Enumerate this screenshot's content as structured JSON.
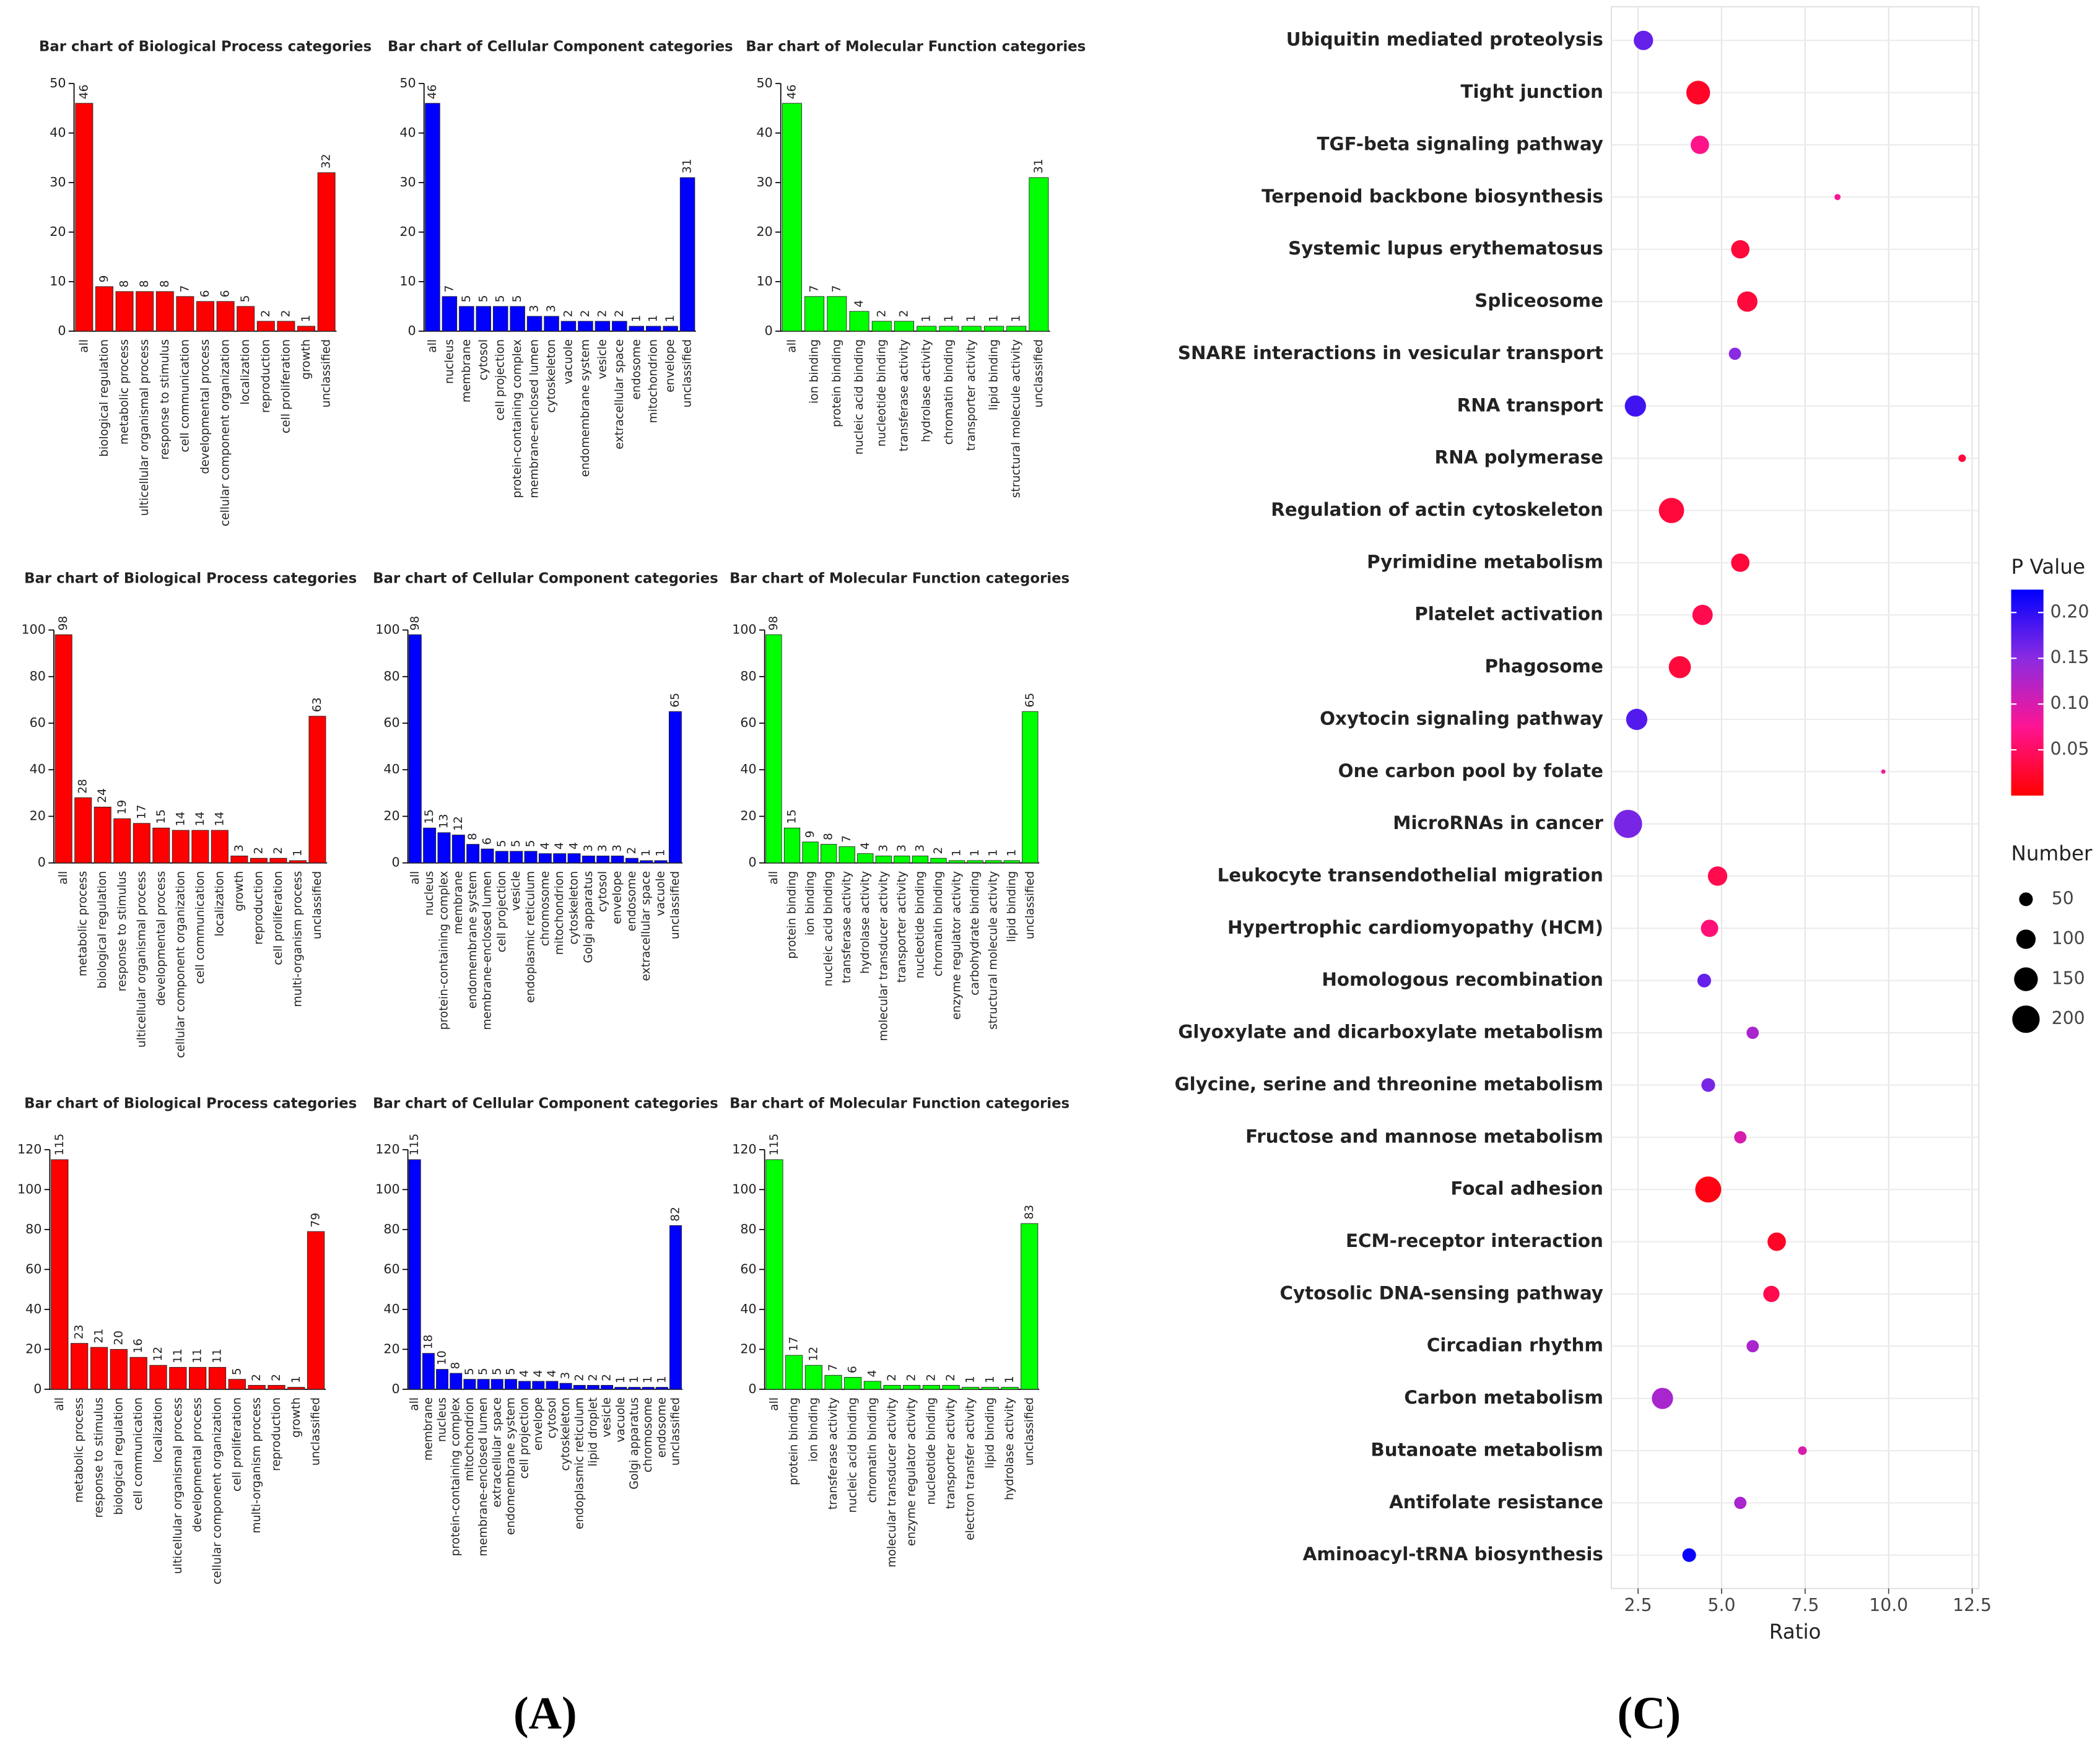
{
  "panel_labels": [
    "(A)",
    "(C)"
  ],
  "chart_data": [
    {
      "type": "bar",
      "title": "Bar chart of Biological Process categories",
      "color": "#ff0000",
      "categories": [
        "all",
        "biological regulation",
        "metabolic process",
        "ulticellular organismal process",
        "response to stimulus",
        "cell communication",
        "developmental process",
        "cellular component organization",
        "localization",
        "reproduction",
        "cell proliferation",
        "growth",
        "unclassified"
      ],
      "values": [
        46,
        9,
        8,
        8,
        8,
        7,
        6,
        6,
        5,
        2,
        2,
        1,
        32
      ],
      "ylim": [
        0,
        50
      ],
      "yticks": [
        0,
        10,
        20,
        30,
        40,
        50
      ]
    },
    {
      "type": "bar",
      "title": "Bar chart of Cellular Component categories",
      "color": "#0000ff",
      "categories": [
        "all",
        "nucleus",
        "membrane",
        "cytosol",
        "cell projection",
        "protein-containing complex",
        "membrane-enclosed lumen",
        "cytoskeleton",
        "vacuole",
        "endomembrane system",
        "vesicle",
        "extracellular space",
        "endosome",
        "mitochondrion",
        "envelope",
        "unclassified"
      ],
      "values": [
        46,
        7,
        5,
        5,
        5,
        5,
        3,
        3,
        2,
        2,
        2,
        2,
        1,
        1,
        1,
        31
      ],
      "ylim": [
        0,
        50
      ],
      "yticks": [
        0,
        10,
        20,
        30,
        40,
        50
      ]
    },
    {
      "type": "bar",
      "title": "Bar chart of Molecular Function categories",
      "color": "#00ff00",
      "categories": [
        "all",
        "ion binding",
        "protein binding",
        "nucleic acid binding",
        "nucleotide binding",
        "transferase activity",
        "hydrolase activity",
        "chromatin binding",
        "transporter activity",
        "lipid binding",
        "structural molecule activity",
        "unclassified"
      ],
      "values": [
        46,
        7,
        7,
        4,
        2,
        2,
        1,
        1,
        1,
        1,
        1,
        31
      ],
      "ylim": [
        0,
        50
      ],
      "yticks": [
        0,
        10,
        20,
        30,
        40,
        50
      ]
    },
    {
      "type": "bar",
      "title": "Bar chart of Biological Process categories",
      "color": "#ff0000",
      "categories": [
        "all",
        "metabolic process",
        "biological regulation",
        "response to stimulus",
        "ulticellular organismal process",
        "developmental process",
        "cellular component organization",
        "cell communication",
        "localization",
        "growth",
        "reproduction",
        "cell proliferation",
        "multi-organism process",
        "unclassified"
      ],
      "values": [
        98,
        28,
        24,
        19,
        17,
        15,
        14,
        14,
        14,
        3,
        2,
        2,
        1,
        63
      ],
      "ylim": [
        0,
        100
      ],
      "yticks": [
        0,
        20,
        40,
        60,
        80,
        100
      ]
    },
    {
      "type": "bar",
      "title": "Bar chart of Cellular Component categories",
      "color": "#0000ff",
      "categories": [
        "all",
        "nucleus",
        "protein-containing complex",
        "membrane",
        "endomembrane system",
        "membrane-enclosed lumen",
        "cell projection",
        "vesicle",
        "endoplasmic reticulum",
        "chromosome",
        "mitochondrion",
        "cytoskeleton",
        "Golgi apparatus",
        "cytosol",
        "envelope",
        "endosome",
        "extracellular space",
        "vacuole",
        "unclassified"
      ],
      "values": [
        98,
        15,
        13,
        12,
        8,
        6,
        5,
        5,
        5,
        4,
        4,
        4,
        3,
        3,
        3,
        2,
        1,
        1,
        65
      ],
      "ylim": [
        0,
        100
      ],
      "yticks": [
        0,
        20,
        40,
        60,
        80,
        100
      ]
    },
    {
      "type": "bar",
      "title": "Bar chart of Molecular Function categories",
      "color": "#00ff00",
      "categories": [
        "all",
        "protein binding",
        "ion binding",
        "nucleic acid binding",
        "transferase activity",
        "hydrolase activity",
        "molecular transducer activity",
        "transporter activity",
        "nucleotide binding",
        "chromatin binding",
        "enzyme regulator activity",
        "carbohydrate binding",
        "structural molecule activity",
        "lipid binding",
        "unclassified"
      ],
      "values": [
        98,
        15,
        9,
        8,
        7,
        4,
        3,
        3,
        3,
        2,
        1,
        1,
        1,
        1,
        65
      ],
      "ylim": [
        0,
        100
      ],
      "yticks": [
        0,
        20,
        40,
        60,
        80,
        100
      ]
    },
    {
      "type": "bar",
      "title": "Bar chart of Biological Process categories",
      "color": "#ff0000",
      "categories": [
        "all",
        "metabolic process",
        "response to stimulus",
        "biological regulation",
        "cell communication",
        "localization",
        "ulticellular organismal process",
        "developmental process",
        "cellular component organization",
        "cell proliferation",
        "multi-organism process",
        "reproduction",
        "growth",
        "unclassified"
      ],
      "values": [
        115,
        23,
        21,
        20,
        16,
        12,
        11,
        11,
        11,
        5,
        2,
        2,
        1,
        79
      ],
      "ylim": [
        0,
        120
      ],
      "yticks": [
        0,
        20,
        40,
        60,
        80,
        100,
        120
      ]
    },
    {
      "type": "bar",
      "title": "Bar chart of Cellular Component categories",
      "color": "#0000ff",
      "categories": [
        "all",
        "membrane",
        "nucleus",
        "protein-containing complex",
        "mitochondrion",
        "membrane-enclosed lumen",
        "extracellular space",
        "endomembrane system",
        "cell projection",
        "envelope",
        "cytosol",
        "cytoskeleton",
        "endoplasmic reticulum",
        "lipid droplet",
        "vesicle",
        "vacuole",
        "Golgi apparatus",
        "chromosome",
        "endosome",
        "unclassified"
      ],
      "values": [
        115,
        18,
        10,
        8,
        5,
        5,
        5,
        5,
        4,
        4,
        4,
        3,
        2,
        2,
        2,
        1,
        1,
        1,
        1,
        82
      ],
      "ylim": [
        0,
        120
      ],
      "yticks": [
        0,
        20,
        40,
        60,
        80,
        100,
        120
      ]
    },
    {
      "type": "bar",
      "title": "Bar chart of Molecular Function categories",
      "color": "#00ff00",
      "categories": [
        "all",
        "protein binding",
        "ion binding",
        "transferase activity",
        "nucleic acid binding",
        "chromatin binding",
        "molecular transducer activity",
        "enzyme regulator activity",
        "nucleotide binding",
        "transporter activity",
        "electron transfer activity",
        "lipid binding",
        "hydrolase activity",
        "unclassified"
      ],
      "values": [
        115,
        17,
        12,
        7,
        6,
        4,
        2,
        2,
        2,
        2,
        1,
        1,
        1,
        83
      ],
      "ylim": [
        0,
        120
      ],
      "yticks": [
        0,
        20,
        40,
        60,
        80,
        100,
        120
      ]
    },
    {
      "type": "bubble",
      "xlabel": "Ratio",
      "categories": [
        "Ubiquitin mediated proteolysis",
        "Tight junction",
        "TGF-beta signaling pathway",
        "Terpenoid backbone biosynthesis",
        "Systemic lupus erythematosus",
        "Spliceosome",
        "SNARE interactions in vesicular transport",
        "RNA transport",
        "RNA polymerase",
        "Regulation of actin cytoskeleton",
        "Pyrimidine metabolism",
        "Platelet activation",
        "Phagosome",
        "Oxytocin signaling pathway",
        "One carbon pool by folate",
        "MicroRNAs in cancer",
        "Leukocyte transendothelial migration",
        "Hypertrophic cardiomyopathy (HCM)",
        "Homologous recombination",
        "Glyoxylate and dicarboxylate metabolism",
        "Glycine, serine and threonine metabolism",
        "Fructose and mannose metabolism",
        "Focal adhesion",
        "ECM-receptor interaction",
        "Cytosolic DNA-sensing pathway",
        "Circadian rhythm",
        "Carbon metabolism",
        "Butanoate metabolism",
        "Antifolate resistance",
        "Aminoacyl-tRNA biosynthesis"
      ],
      "x": [
        2.66,
        4.3,
        4.35,
        8.47,
        5.56,
        5.77,
        5.4,
        2.42,
        12.2,
        3.5,
        5.56,
        4.43,
        3.75,
        2.46,
        9.84,
        2.2,
        4.88,
        4.64,
        4.48,
        5.93,
        4.6,
        5.56,
        4.6,
        6.65,
        6.49,
        5.93,
        3.23,
        7.42,
        5.56,
        4.03
      ],
      "sizes": [
        100,
        150,
        90,
        10,
        90,
        110,
        40,
        120,
        15,
        170,
        90,
        110,
        130,
        120,
        5,
        210,
        100,
        80,
        50,
        40,
        50,
        40,
        180,
        90,
        70,
        40,
        120,
        20,
        40,
        50
      ],
      "pvalues": [
        0.17,
        0.02,
        0.07,
        0.08,
        0.03,
        0.03,
        0.15,
        0.19,
        0.03,
        0.03,
        0.03,
        0.04,
        0.03,
        0.18,
        0.08,
        0.16,
        0.04,
        0.06,
        0.17,
        0.13,
        0.16,
        0.1,
        0.01,
        0.02,
        0.04,
        0.13,
        0.13,
        0.1,
        0.13,
        0.22
      ],
      "xlim": [
        1.7,
        12.7
      ],
      "xticks": [
        2.5,
        {
          "value": 5,
          "label": "5.0"
        },
        7.5,
        {
          "value": 10,
          "label": "10.0"
        },
        12.5
      ],
      "grid": true,
      "color_title": "P Value",
      "colors": [
        "#ff0000",
        "#ff1493",
        "#8a2be2",
        "#0000ff"
      ],
      "colorlim": [
        0,
        0.225
      ],
      "colorticks": [
        0.05,
        {
          "value": 0.1,
          "label": "0.10"
        },
        0.15,
        {
          "value": 0.2,
          "label": "0.20"
        }
      ],
      "size_title": "Number",
      "size_ticks": [
        50,
        100,
        150,
        200
      ]
    }
  ]
}
